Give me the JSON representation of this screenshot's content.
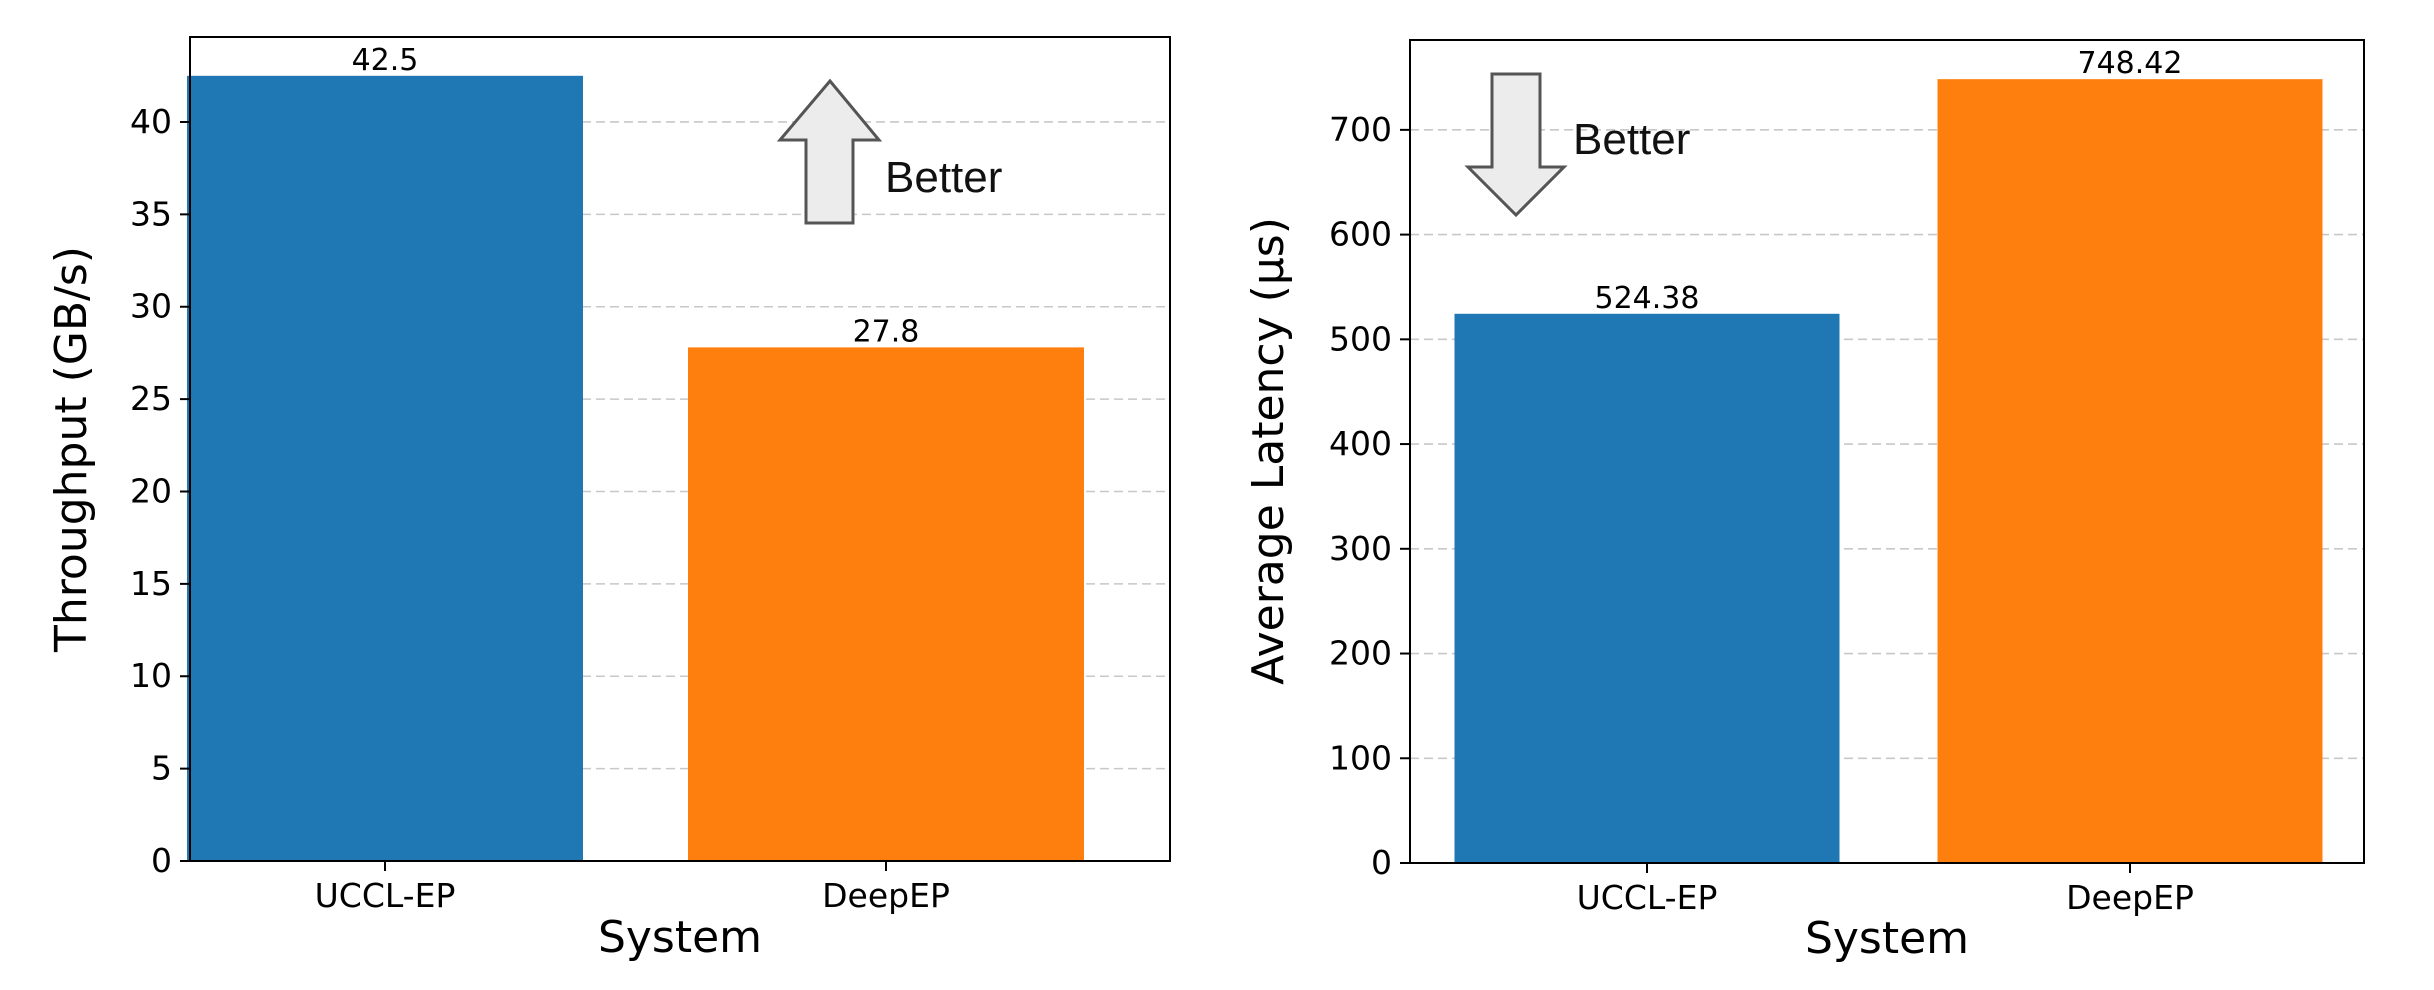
{
  "chart_data": [
    {
      "type": "bar",
      "categories": [
        "UCCL-EP",
        "DeepEP"
      ],
      "values": [
        42.5,
        27.8
      ],
      "value_labels": [
        "42.5",
        "27.8"
      ],
      "colors": [
        "#1f77b4",
        "#ff7f0e"
      ],
      "title": "",
      "xlabel": "System",
      "ylabel": "Throughput (GB/s)",
      "ylim": [
        0,
        44.6
      ],
      "yticks": [
        0,
        5,
        10,
        15,
        20,
        25,
        30,
        35,
        40
      ],
      "grid": "y-dashed",
      "annotation": {
        "text": "Better",
        "arrow": "up"
      }
    },
    {
      "type": "bar",
      "categories": [
        "UCCL-EP",
        "DeepEP"
      ],
      "values": [
        524.38,
        748.42
      ],
      "value_labels": [
        "524.38",
        "748.42"
      ],
      "colors": [
        "#1f77b4",
        "#ff7f0e"
      ],
      "title": "",
      "xlabel": "System",
      "ylabel": "Average Latency (μs)",
      "ylim": [
        0,
        785.8
      ],
      "yticks": [
        0,
        100,
        200,
        300,
        400,
        500,
        600,
        700
      ],
      "grid": "y-dashed",
      "annotation": {
        "text": "Better",
        "arrow": "down"
      }
    }
  ]
}
